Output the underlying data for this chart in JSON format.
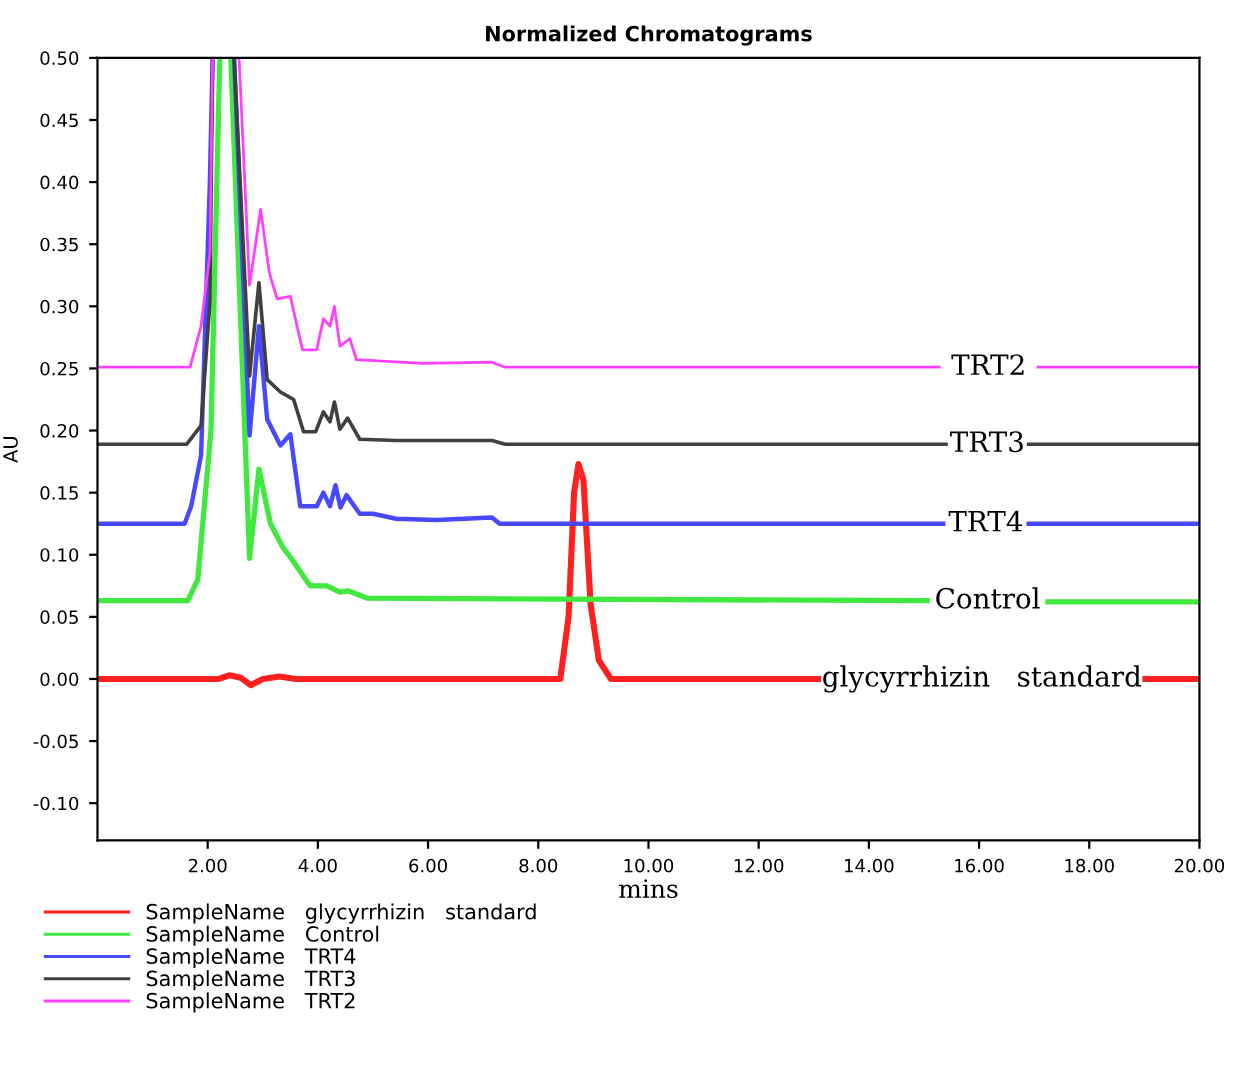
{
  "chart_data": {
    "type": "line",
    "title": "Normalized Chromatograms",
    "xlabel": "mins",
    "ylabel": "AU",
    "xlim": [
      0,
      20
    ],
    "ylim": [
      -0.13,
      0.5
    ],
    "xticks": [
      {
        "value": 2,
        "label": "2.00"
      },
      {
        "value": 4,
        "label": "4.00"
      },
      {
        "value": 6,
        "label": "6.00"
      },
      {
        "value": 8,
        "label": "8.00"
      },
      {
        "value": 10,
        "label": "10.00"
      },
      {
        "value": 12,
        "label": "12.00"
      },
      {
        "value": 14,
        "label": "14.00"
      },
      {
        "value": 16,
        "label": "16.00"
      },
      {
        "value": 18,
        "label": "18.00"
      },
      {
        "value": 20,
        "label": "20.00"
      }
    ],
    "yticks": [
      {
        "value": -0.1,
        "label": "-0.10"
      },
      {
        "value": -0.05,
        "label": "-0.05"
      },
      {
        "value": 0,
        "label": "0.00"
      },
      {
        "value": 0.05,
        "label": "0.05"
      },
      {
        "value": 0.1,
        "label": "0.10"
      },
      {
        "value": 0.15,
        "label": "0.15"
      },
      {
        "value": 0.2,
        "label": "0.20"
      },
      {
        "value": 0.25,
        "label": "0.25"
      },
      {
        "value": 0.3,
        "label": "0.30"
      },
      {
        "value": 0.35,
        "label": "0.35"
      },
      {
        "value": 0.4,
        "label": "0.40"
      },
      {
        "value": 0.45,
        "label": "0.45"
      },
      {
        "value": 0.5,
        "label": "0.50"
      }
    ],
    "grid": false,
    "legend": "bottom",
    "series": [
      {
        "name": "SampleName   glycyrrhizin   standard",
        "color": "#ff2020",
        "x": [
          0,
          2.2,
          2.4,
          2.6,
          2.78,
          3.0,
          3.3,
          3.6,
          4.0,
          8.4,
          8.55,
          8.65,
          8.73,
          8.82,
          8.95,
          9.1,
          9.32,
          13.08,
          16.0,
          19.02,
          20
        ],
        "values": [
          0,
          0,
          0.003,
          0.001,
          -0.005,
          0,
          0.002,
          0,
          0,
          0,
          0.05,
          0.15,
          0.173,
          0.16,
          0.06,
          0.015,
          0,
          0,
          null,
          0,
          0
        ]
      },
      {
        "name": "SampleName   Control",
        "color": "#40e840",
        "x": [
          0,
          1.64,
          1.82,
          2.06,
          2.22,
          2.3,
          2.42,
          2.76,
          2.93,
          3.14,
          3.35,
          3.5,
          3.86,
          4.16,
          4.4,
          4.55,
          4.9,
          15.06,
          16.1,
          17.25,
          20
        ],
        "values": [
          0.063,
          0.063,
          0.08,
          0.2,
          0.5,
          null,
          0.5,
          0.097,
          0.169,
          0.125,
          0.107,
          0.098,
          0.075,
          0.075,
          0.07,
          0.071,
          0.065,
          0.063,
          null,
          0.062,
          0.062
        ]
      },
      {
        "name": "SampleName   TRT4",
        "color": "#4848ff",
        "x": [
          0,
          1.58,
          1.7,
          1.88,
          2.04,
          2.09,
          2.3,
          2.48,
          2.76,
          2.93,
          3.08,
          3.32,
          3.5,
          3.68,
          3.98,
          4.1,
          4.22,
          4.32,
          4.41,
          4.52,
          4.76,
          5.0,
          5.42,
          6.14,
          7.16,
          7.3,
          15.35,
          16.1,
          16.9,
          20
        ],
        "values": [
          0.125,
          0.125,
          0.139,
          0.18,
          0.4,
          0.5,
          null,
          0.5,
          0.196,
          0.284,
          0.209,
          0.188,
          0.197,
          0.139,
          0.139,
          0.15,
          0.139,
          0.156,
          0.138,
          0.148,
          0.133,
          0.133,
          0.129,
          0.128,
          0.13,
          0.125,
          0.125,
          null,
          0.125,
          0.125
        ]
      },
      {
        "name": "SampleName   TRT3",
        "color": "#404040",
        "x": [
          0,
          1.62,
          1.88,
          2.04,
          2.09,
          2.3,
          2.48,
          2.76,
          2.93,
          3.08,
          3.32,
          3.56,
          3.74,
          3.96,
          4.1,
          4.22,
          4.3,
          4.4,
          4.54,
          4.76,
          5.42,
          7.16,
          7.4,
          15.4,
          16.1,
          16.9,
          20
        ],
        "values": [
          0.189,
          0.189,
          0.204,
          0.303,
          0.5,
          null,
          0.5,
          0.244,
          0.319,
          0.241,
          0.231,
          0.225,
          0.199,
          0.199,
          0.215,
          0.207,
          0.223,
          0.201,
          0.21,
          0.193,
          0.192,
          0.192,
          0.189,
          0.189,
          null,
          0.189,
          0.189
        ]
      },
      {
        "name": "SampleName   TRT2",
        "color": "#ff40ff",
        "x": [
          0,
          1.68,
          1.88,
          2.04,
          2.09,
          2.3,
          2.57,
          2.76,
          2.96,
          3.12,
          3.26,
          3.5,
          3.72,
          3.98,
          4.1,
          4.22,
          4.3,
          4.4,
          4.58,
          4.7,
          5.9,
          7.16,
          7.4,
          15.28,
          16.1,
          17.07,
          20
        ],
        "values": [
          0.251,
          0.251,
          0.284,
          0.343,
          0.5,
          null,
          0.5,
          0.317,
          0.378,
          0.327,
          0.306,
          0.308,
          0.265,
          0.265,
          0.29,
          0.284,
          0.3,
          0.268,
          0.274,
          0.257,
          0.254,
          0.255,
          0.251,
          0.251,
          null,
          0.251,
          0.251
        ]
      }
    ],
    "annotations": [
      "glycyrrhizin   standard",
      "Control",
      "TRT4",
      "TRT3",
      "TRT2"
    ]
  }
}
